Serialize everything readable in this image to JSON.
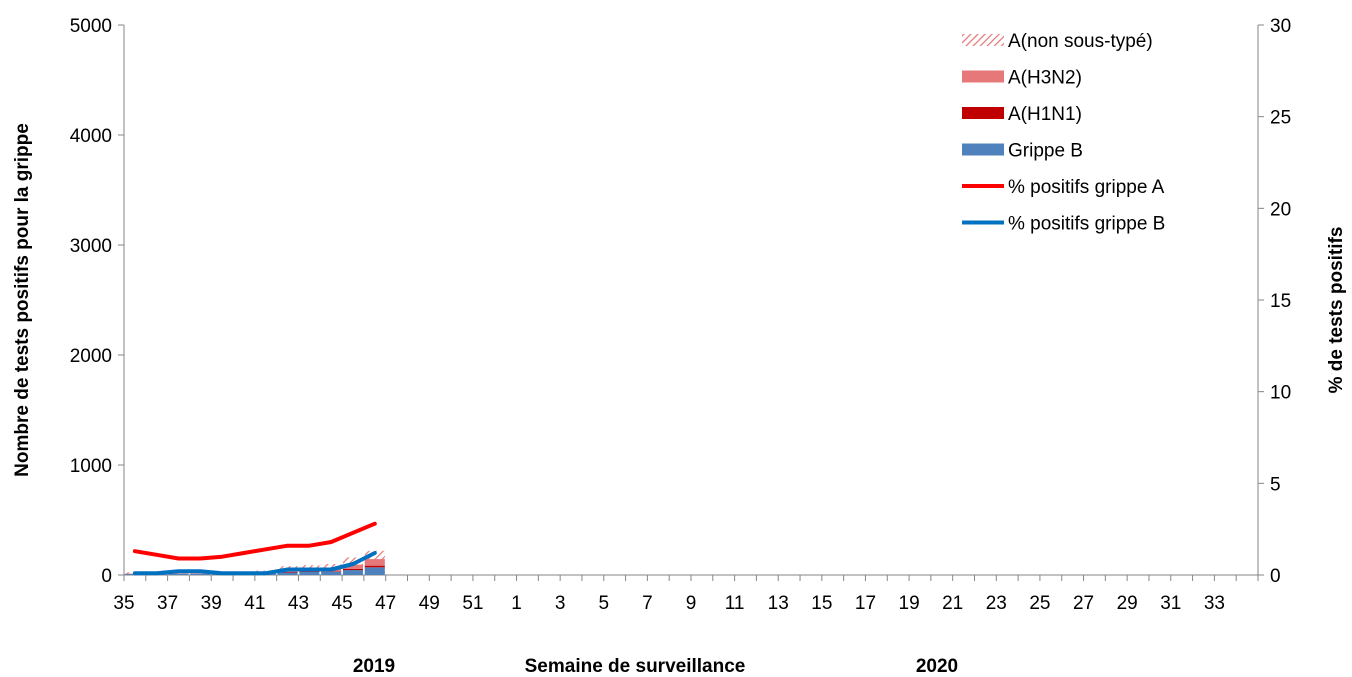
{
  "chart_data": {
    "type": "bar",
    "stacked": true,
    "xlabel": "Semaine de surveillance",
    "ylabel_left": "Nombre de tests positifs pour la grippe",
    "ylabel_right": "% de tests positifs",
    "years": [
      "2019",
      "2020"
    ],
    "ylim_left": [
      0,
      5000
    ],
    "yticks_left": [
      "0",
      "1000",
      "2000",
      "3000",
      "4000",
      "5000"
    ],
    "ylim_right": [
      0,
      30
    ],
    "yticks_right": [
      "0",
      "5",
      "10",
      "15",
      "20",
      "25",
      "30"
    ],
    "weeks": [
      35,
      36,
      37,
      38,
      39,
      40,
      41,
      42,
      43,
      44,
      45,
      46,
      47,
      48,
      49,
      50,
      51,
      52,
      1,
      2,
      3,
      4,
      5,
      6,
      7,
      8,
      9,
      10,
      11,
      12,
      13,
      14,
      15,
      16,
      17,
      18,
      19,
      20,
      21,
      22,
      23,
      24,
      25,
      26,
      27,
      28,
      29,
      30,
      31,
      32,
      33,
      34
    ],
    "xtick_labels": [
      "35",
      "37",
      "39",
      "41",
      "43",
      "45",
      "47",
      "49",
      "51",
      "1",
      "3",
      "5",
      "7",
      "9",
      "11",
      "13",
      "15",
      "17",
      "19",
      "21",
      "23",
      "25",
      "27",
      "29",
      "31",
      "33"
    ],
    "bar_series": [
      {
        "name": "Grippe B",
        "color": "#4f81bd",
        "values": [
          10,
          10,
          12,
          12,
          10,
          12,
          15,
          25,
          30,
          30,
          45,
          70
        ]
      },
      {
        "name": "A(H1N1)",
        "color": "#c00000",
        "values": [
          0,
          0,
          0,
          0,
          0,
          0,
          0,
          2,
          3,
          5,
          10,
          15
        ]
      },
      {
        "name": "A(H3N2)",
        "color": "#e6787a",
        "values": [
          3,
          3,
          3,
          3,
          3,
          5,
          8,
          15,
          18,
          25,
          40,
          60
        ]
      },
      {
        "name": "A(non sous-typé)",
        "color": "#e6787a",
        "pattern": "hatched",
        "values": [
          12,
          12,
          10,
          10,
          12,
          13,
          17,
          38,
          39,
          40,
          65,
          75
        ]
      }
    ],
    "line_series": [
      {
        "name": "% positifs grippe A",
        "color": "#ff0000",
        "values": [
          1.3,
          1.1,
          0.9,
          0.9,
          1.0,
          1.2,
          1.4,
          1.6,
          1.6,
          1.8,
          2.3,
          2.8
        ]
      },
      {
        "name": "% positifs grippe B",
        "color": "#0070c0",
        "values": [
          0.1,
          0.1,
          0.2,
          0.2,
          0.1,
          0.1,
          0.1,
          0.3,
          0.3,
          0.3,
          0.6,
          1.2
        ]
      }
    ],
    "legend_position": "top-right",
    "legend": [
      {
        "label": "A(non sous-typé)",
        "kind": "hatch",
        "color": "#e6787a"
      },
      {
        "label": "A(H3N2)",
        "kind": "box",
        "color": "#e6787a"
      },
      {
        "label": "A(H1N1)",
        "kind": "box",
        "color": "#c00000"
      },
      {
        "label": "Grippe B",
        "kind": "box",
        "color": "#4f81bd"
      },
      {
        "label": "% positifs grippe A",
        "kind": "line",
        "color": "#ff0000"
      },
      {
        "label": "% positifs grippe B",
        "kind": "line",
        "color": "#0070c0"
      }
    ]
  }
}
